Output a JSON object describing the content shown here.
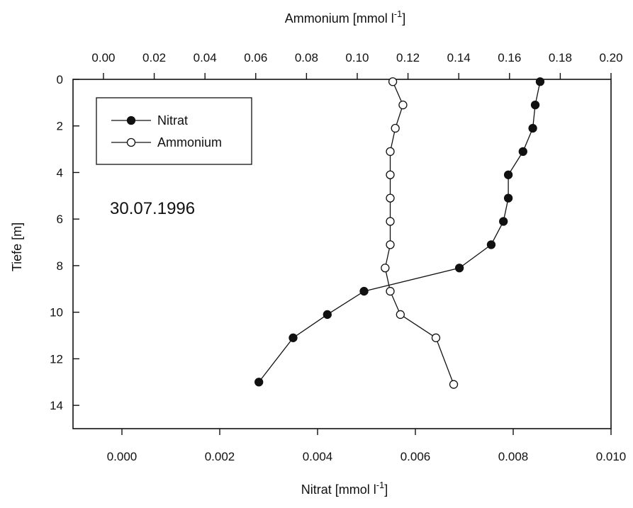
{
  "chart_data": {
    "type": "line",
    "annotation": "30.07.1996",
    "axes": {
      "y": {
        "label": "Tiefe [m]",
        "range": [
          15,
          0
        ],
        "inverted": true,
        "ticks": [
          0,
          2,
          4,
          6,
          8,
          10,
          12,
          14
        ],
        "tick_labels": [
          "0",
          "2",
          "4",
          "6",
          "8",
          "10",
          "12",
          "14"
        ]
      },
      "x_top": {
        "label_base": "Ammonium [mmol l",
        "label_exp": "-1",
        "label_close": "]",
        "range": [
          -0.012,
          0.2
        ],
        "ticks": [
          0.0,
          0.02,
          0.04,
          0.06,
          0.08,
          0.1,
          0.12,
          0.14,
          0.16,
          0.18,
          0.2
        ],
        "tick_labels": [
          "0.00",
          "0.02",
          "0.04",
          "0.06",
          "0.08",
          "0.10",
          "0.12",
          "0.14",
          "0.16",
          "0.18",
          "0.20"
        ]
      },
      "x_bottom": {
        "label_base": "Nitrat [mmol l",
        "label_exp": "-1",
        "label_close": "]",
        "range": [
          -0.001,
          0.01
        ],
        "ticks": [
          0.0,
          0.002,
          0.004,
          0.006,
          0.008,
          0.01
        ],
        "tick_labels": [
          "0.000",
          "0.002",
          "0.004",
          "0.006",
          "0.008",
          "0.010"
        ]
      }
    },
    "legend": {
      "placement": "top-left",
      "entries": [
        {
          "name": "Nitrat",
          "marker": "filled-circle"
        },
        {
          "name": "Ammonium",
          "marker": "open-circle"
        }
      ]
    },
    "series": [
      {
        "name": "Nitrat",
        "axis": "x_bottom",
        "marker": "filled",
        "points": [
          {
            "x": 0.00855,
            "y": 0.1
          },
          {
            "x": 0.00845,
            "y": 1.1
          },
          {
            "x": 0.0084,
            "y": 2.1
          },
          {
            "x": 0.0082,
            "y": 3.1
          },
          {
            "x": 0.0079,
            "y": 4.1
          },
          {
            "x": 0.0079,
            "y": 5.1
          },
          {
            "x": 0.0078,
            "y": 6.1
          },
          {
            "x": 0.00755,
            "y": 7.1
          },
          {
            "x": 0.0069,
            "y": 8.1
          },
          {
            "x": 0.00495,
            "y": 9.1
          },
          {
            "x": 0.0042,
            "y": 10.1
          },
          {
            "x": 0.0035,
            "y": 11.1
          },
          {
            "x": 0.0028,
            "y": 13.0
          }
        ]
      },
      {
        "name": "Ammonium",
        "axis": "x_top",
        "marker": "open",
        "points": [
          {
            "x": 0.114,
            "y": 0.1
          },
          {
            "x": 0.118,
            "y": 1.1
          },
          {
            "x": 0.115,
            "y": 2.1
          },
          {
            "x": 0.113,
            "y": 3.1
          },
          {
            "x": 0.113,
            "y": 4.1
          },
          {
            "x": 0.113,
            "y": 5.1
          },
          {
            "x": 0.113,
            "y": 6.1
          },
          {
            "x": 0.113,
            "y": 7.1
          },
          {
            "x": 0.111,
            "y": 8.1
          },
          {
            "x": 0.113,
            "y": 9.1
          },
          {
            "x": 0.117,
            "y": 10.1
          },
          {
            "x": 0.131,
            "y": 11.1
          },
          {
            "x": 0.138,
            "y": 13.1
          }
        ]
      }
    ]
  }
}
